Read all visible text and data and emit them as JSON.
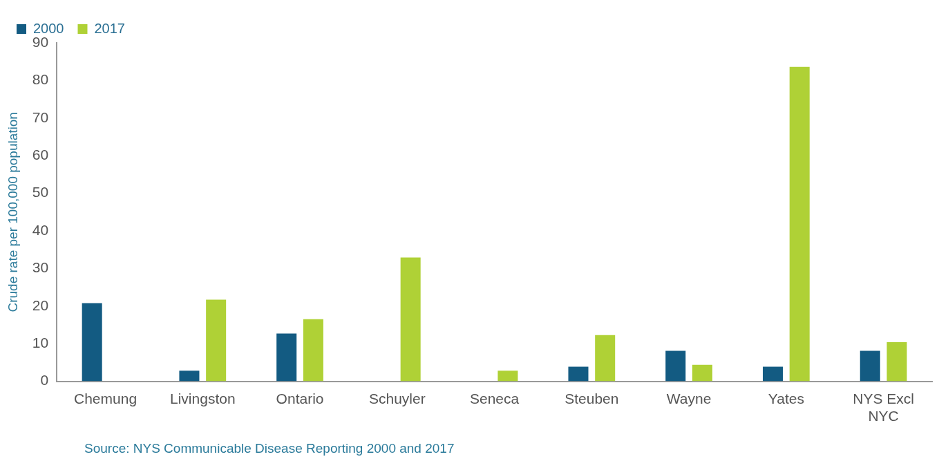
{
  "chart_data": {
    "type": "bar",
    "categories": [
      "Chemung",
      "Livingston",
      "Ontario",
      "Schuyler",
      "Seneca",
      "Steuben",
      "Wayne",
      "Yates",
      "NYS Excl NYC"
    ],
    "series": [
      {
        "name": "2000",
        "color": "#135b82",
        "values": [
          20.8,
          2.8,
          12.7,
          null,
          null,
          3.9,
          8.1,
          3.9,
          8.1
        ]
      },
      {
        "name": "2017",
        "color": "#afd136",
        "values": [
          null,
          21.7,
          16.5,
          32.9,
          2.8,
          12.3,
          4.4,
          83.6,
          10.4
        ]
      }
    ],
    "ylabel": "Crude rate per 100,000 population",
    "ylim": [
      0,
      90
    ],
    "yticks": [
      0,
      10,
      20,
      30,
      40,
      50,
      60,
      70,
      80,
      90
    ],
    "grid": false,
    "legend": "top left",
    "annotations": [
      "Source: NYS Communicable Disease Reporting 2000 and 2017"
    ]
  }
}
